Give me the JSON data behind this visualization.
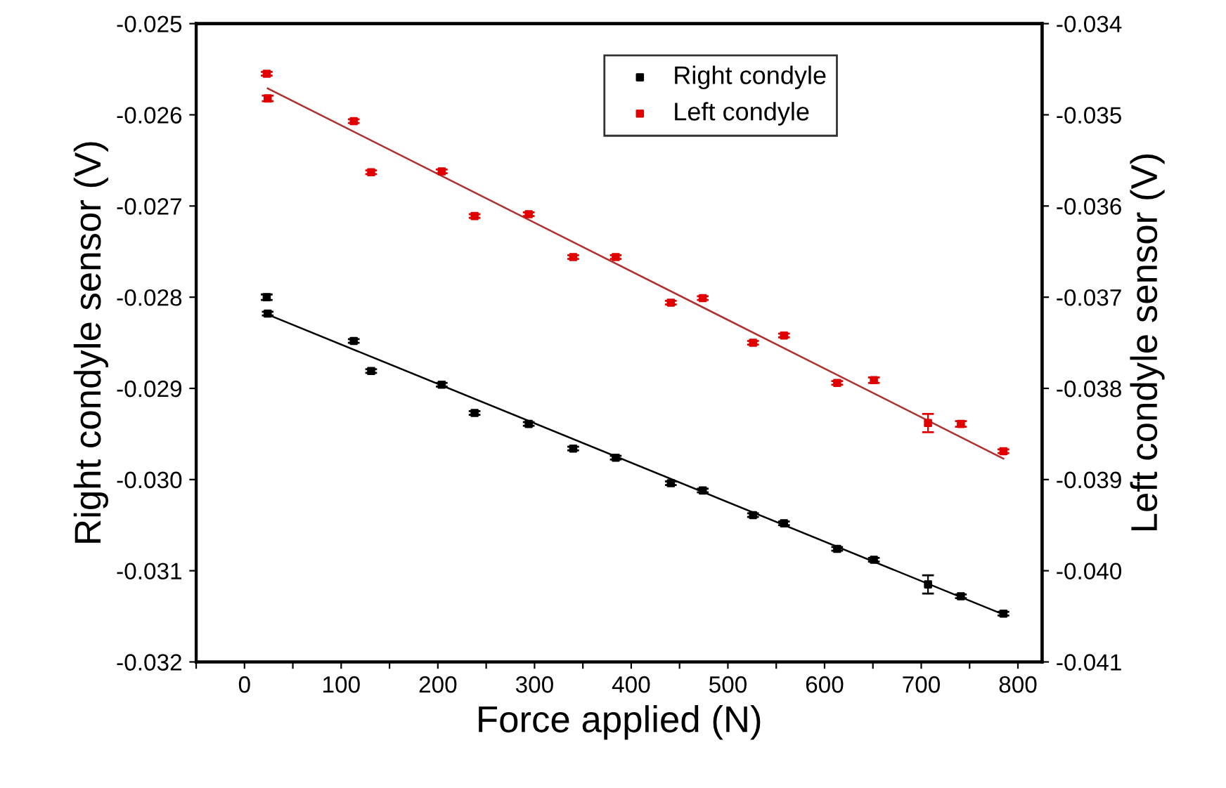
{
  "chart_data": {
    "type": "scatter",
    "xlabel": "Force applied (N)",
    "ylabel": "Right condyle sensor (V)",
    "y2label": "Left condyle sensor (V)",
    "xlim": [
      -50,
      825
    ],
    "xticks": [
      {
        "value": -50,
        "label": null
      },
      0,
      {
        "value": 50,
        "label": null
      },
      100,
      {
        "value": 150,
        "label": null
      },
      200,
      {
        "value": 250,
        "label": null
      },
      300,
      {
        "value": 350,
        "label": null
      },
      400,
      {
        "value": 450,
        "label": null
      },
      500,
      {
        "value": 550,
        "label": null
      },
      600,
      {
        "value": 650,
        "label": null
      },
      700,
      {
        "value": 750,
        "label": null
      },
      800
    ],
    "ylim": [
      -0.032,
      -0.025
    ],
    "yticks": [
      -0.032,
      -0.031,
      {
        "value": -0.03,
        "label": "-0.030"
      },
      -0.029,
      -0.028,
      -0.027,
      -0.026,
      -0.025
    ],
    "y2lim": [
      -0.041,
      -0.034
    ],
    "y2ticks": [
      -0.041,
      {
        "value": -0.04,
        "label": "-0.040"
      },
      -0.039,
      -0.038,
      -0.037,
      -0.036,
      -0.035,
      -0.034
    ],
    "grid": false,
    "legend": "top",
    "marker": "square",
    "series": [
      {
        "name": "Right condyle",
        "color": "#000000",
        "x": [
          23,
          24,
          113,
          131,
          204,
          238,
          294,
          340,
          384,
          441,
          474,
          526,
          558,
          613,
          651,
          707,
          741,
          785
        ],
        "values": [
          -0.028,
          -0.02818,
          -0.02848,
          -0.02881,
          -0.02896,
          -0.02927,
          -0.02939,
          -0.02966,
          -0.02976,
          -0.03004,
          -0.03012,
          -0.03039,
          -0.03048,
          -0.03076,
          -0.03088,
          -0.03115,
          -0.03128,
          -0.03147
        ],
        "errors": [
          3e-05,
          2e-05,
          2e-05,
          2e-05,
          2e-05,
          2e-05,
          2e-05,
          2e-05,
          2e-05,
          2e-05,
          2e-05,
          2e-05,
          2e-05,
          2e-05,
          2e-05,
          0.0001,
          2e-05,
          2e-05
        ]
      },
      {
        "name": "Left condyle",
        "color": "#e00000",
        "axis": "y2",
        "x": [
          23,
          24,
          113,
          131,
          204,
          238,
          294,
          340,
          384,
          441,
          474,
          526,
          558,
          613,
          651,
          707,
          741,
          785
        ],
        "values": [
          -0.03455,
          -0.03482,
          -0.03507,
          -0.03563,
          -0.03562,
          -0.03611,
          -0.03609,
          -0.03656,
          -0.03656,
          -0.03706,
          -0.03701,
          -0.0375,
          -0.03742,
          -0.03794,
          -0.03791,
          -0.03838,
          -0.03839,
          -0.03869
        ],
        "errors": [
          2e-05,
          3e-05,
          2e-05,
          2e-05,
          2e-05,
          2e-05,
          2e-05,
          2e-05,
          2e-05,
          2e-05,
          2e-05,
          2e-05,
          2e-05,
          2e-05,
          3e-05,
          0.0001,
          3e-05,
          2e-05
        ]
      },
      {
        "type": "line",
        "color": "#000000",
        "marker": "none",
        "x": [
          24,
          785
        ],
        "values": [
          -0.02819,
          -0.03148
        ]
      },
      {
        "type": "line",
        "color": "#b03030",
        "marker": "none",
        "axis": "y2",
        "x": [
          24,
          785
        ],
        "values": [
          -0.03471,
          -0.03877
        ]
      }
    ]
  }
}
